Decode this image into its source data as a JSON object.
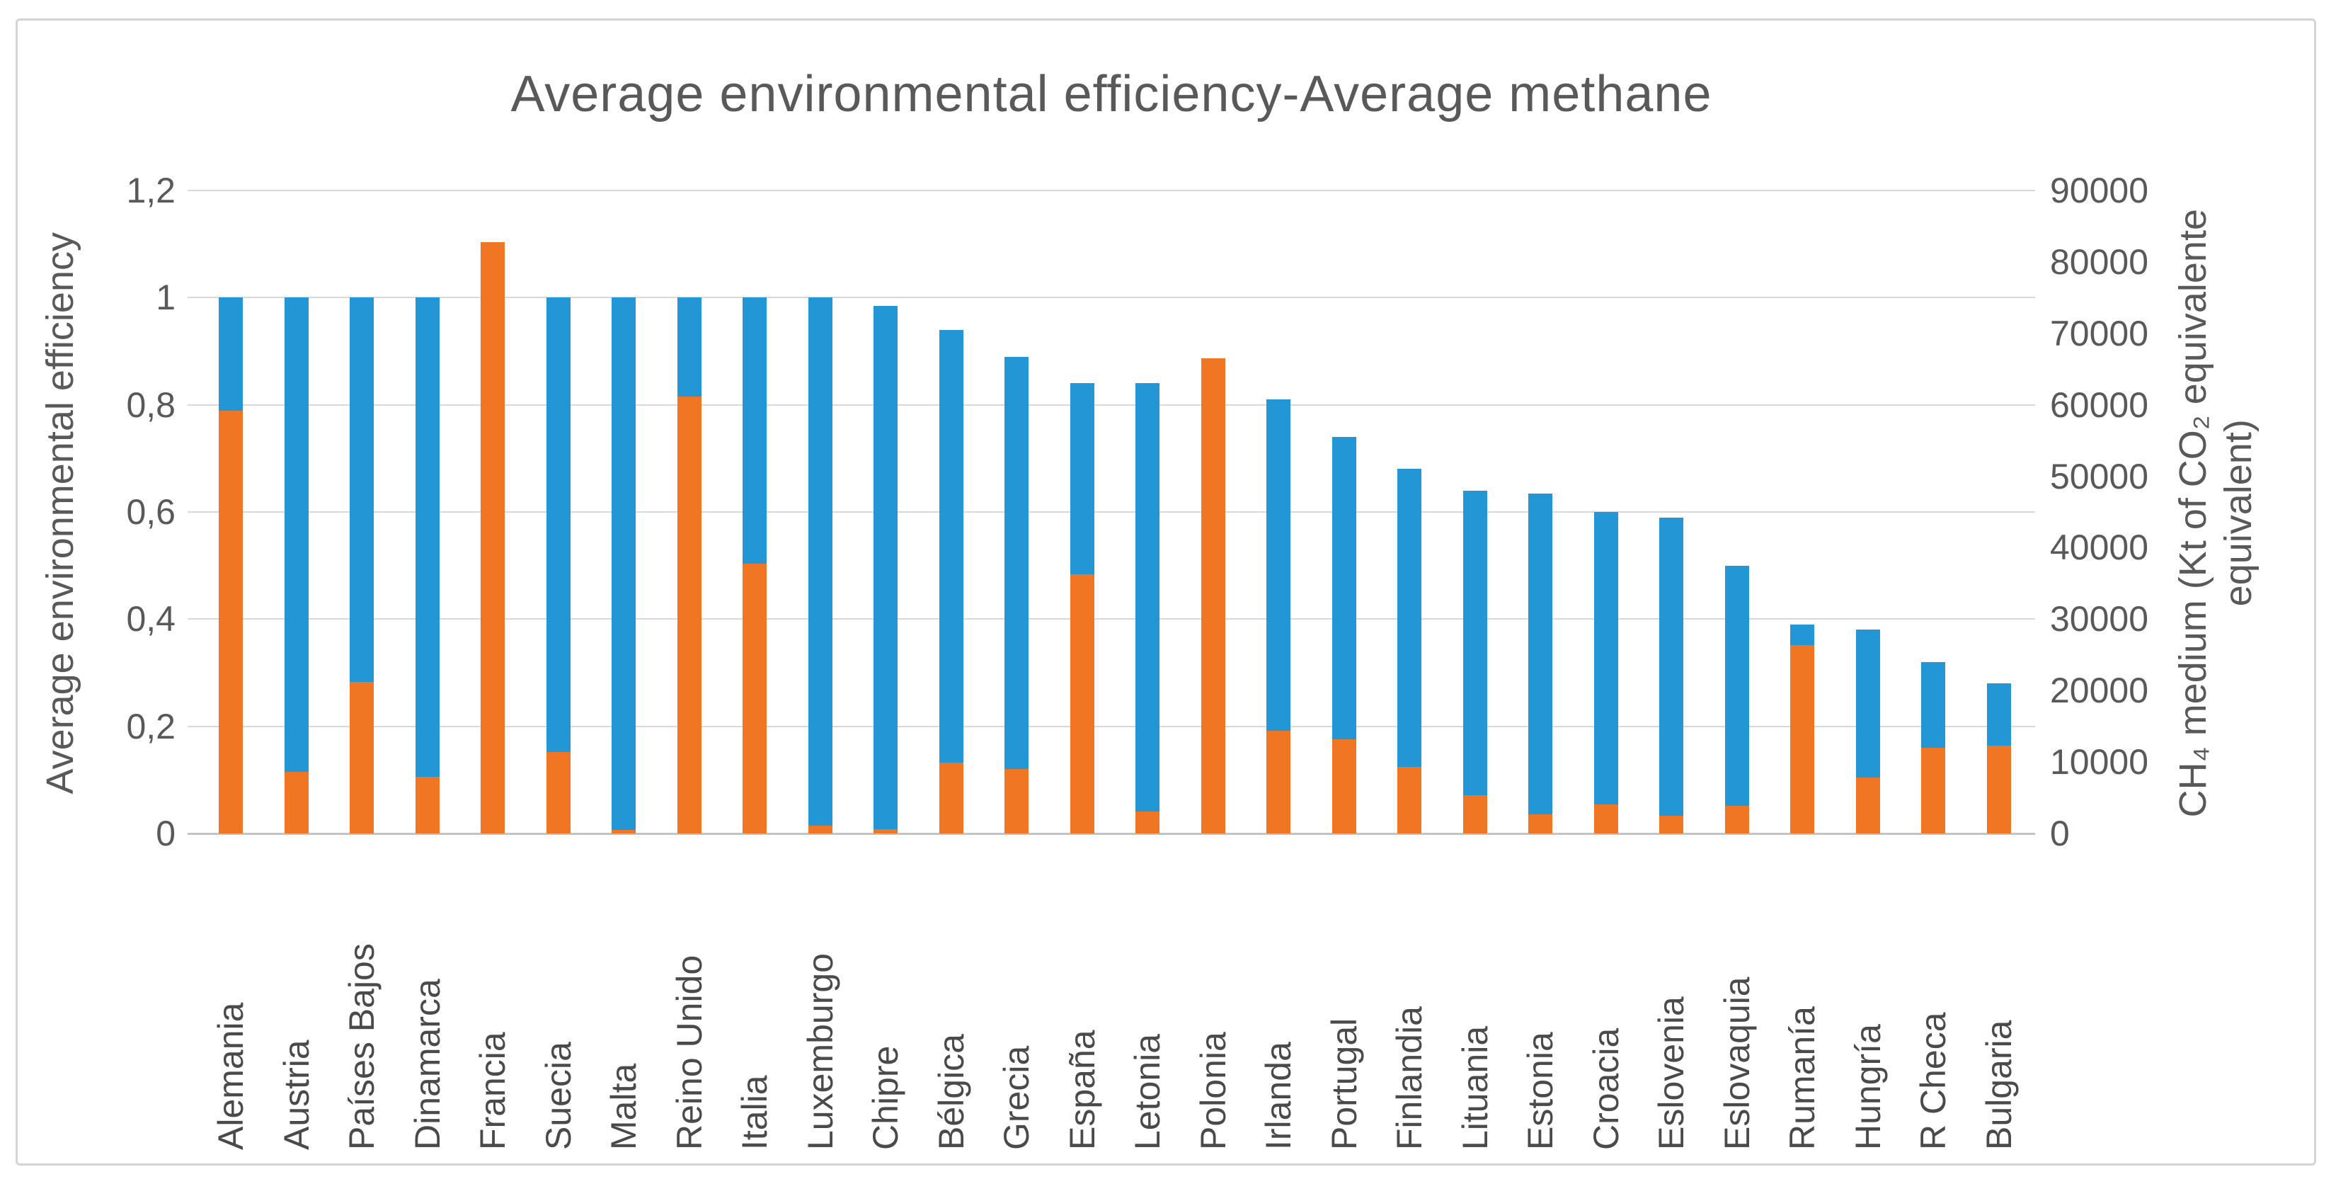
{
  "page": {
    "background_color": "#ffffff",
    "frame_border_color": "#d4d4d4"
  },
  "chart_data": {
    "type": "bar",
    "title": "Average environmental efficiency-Average methane",
    "categories": [
      "Alemania",
      "Austria",
      "Países Bajos",
      "Dinamarca",
      "Francia",
      "Suecia",
      "Malta",
      "Reino Unido",
      "Italia",
      "Luxemburgo",
      "Chipre",
      "Bélgica",
      "Grecia",
      "España",
      "Letonia",
      "Polonia",
      "Irlanda",
      "Portugal",
      "Finlandia",
      "Lituania",
      "Estonia",
      "Croacia",
      "Eslovenia",
      "Eslovaquia",
      "Rumanía",
      "Hungría",
      "R Checa",
      "Bulgaria"
    ],
    "series": [
      {
        "name": "Average environmental efficiency",
        "axis": "left",
        "color": "#2396d5",
        "values": [
          1.0,
          1.0,
          1.0,
          1.0,
          1.0,
          1.0,
          1.0,
          1.0,
          1.0,
          1.0,
          0.985,
          0.94,
          0.89,
          0.84,
          0.84,
          0.82,
          0.81,
          0.74,
          0.68,
          0.64,
          0.635,
          0.6,
          0.59,
          0.5,
          0.39,
          0.38,
          0.32,
          0.28
        ]
      },
      {
        "name": "CH₄ medium (Kt of CO₂ equivalente equivalent)",
        "axis": "right",
        "color": "#f07623",
        "values": [
          59200,
          8600,
          21200,
          7900,
          82800,
          11400,
          450,
          61200,
          37800,
          1100,
          600,
          9900,
          9000,
          36300,
          3100,
          66500,
          14400,
          13200,
          9300,
          5400,
          2700,
          4100,
          2500,
          3900,
          26400,
          7800,
          12000,
          12300
        ]
      }
    ],
    "left_axis": {
      "title": "Average environmental efficiency",
      "tick_labels": [
        "1,2",
        "1",
        "0,8",
        "0,6",
        "0,4",
        "0,2",
        "0"
      ],
      "min": 0,
      "max": 1.2
    },
    "right_axis": {
      "title": "CH₄ medium (Kt of CO₂ equivalente\nequivalent)",
      "tick_labels": [
        "90000",
        "80000",
        "70000",
        "60000",
        "50000",
        "40000",
        "30000",
        "20000",
        "10000",
        "0"
      ],
      "min": 0,
      "max": 90000
    },
    "grid": "horizontal",
    "gridline_color": "#d9d9d9",
    "legend": "none",
    "bar_overlap_note": "series fully overlapped; methane (orange) drawn in front of efficiency (blue)"
  }
}
